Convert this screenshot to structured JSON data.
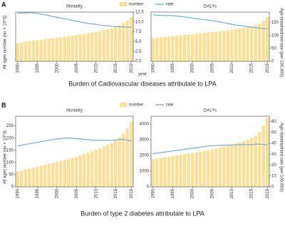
{
  "figures": [
    {
      "label": "A",
      "caption": "Burden of Cadiovascular diseases  attributale to LPA",
      "x_label": "year",
      "y_label": "All ages number (no × 10^3)",
      "y2_label": "Age-standardised rate (per 100,000)"
    },
    {
      "label": "B",
      "caption": "Burden of type 2 diabetes  attributale to LPA",
      "y_label": "All ages number (no × 10^3)",
      "y2_label": "Age-standardised rate (per 100,000)"
    }
  ],
  "chart_data": [
    {
      "type": "bar-line",
      "title": "Mortality",
      "x": [
        1990,
        1991,
        1992,
        1993,
        1994,
        1995,
        1996,
        1997,
        1998,
        1999,
        2000,
        2001,
        2002,
        2003,
        2004,
        2005,
        2006,
        2007,
        2008,
        2009,
        2010,
        2011,
        2012,
        2013,
        2014,
        2015,
        2016,
        2017,
        2018,
        2019
      ],
      "xlim": [
        1989.5,
        2019.5
      ],
      "xticks": [
        1990,
        1995,
        2000,
        2005,
        2010,
        2015,
        2019
      ],
      "ylim": [
        0,
        1000
      ],
      "y2lim": [
        0,
        12.5
      ],
      "y2ticks": [
        {
          "value": 0,
          "label": "0.0"
        },
        {
          "value": 2.5,
          "label": "2.5"
        },
        {
          "value": 5,
          "label": "5.0"
        },
        {
          "value": 7.5,
          "label": "7.5"
        },
        {
          "value": 10,
          "label": "10.0"
        },
        {
          "value": 12.5,
          "label": "12.5"
        }
      ],
      "series": [
        {
          "name": "number",
          "color": "#fbe09a",
          "values": [
            370,
            385,
            398,
            410,
            420,
            430,
            440,
            450,
            460,
            470,
            480,
            490,
            500,
            510,
            520,
            532,
            545,
            558,
            572,
            586,
            600,
            618,
            636,
            656,
            676,
            700,
            730,
            770,
            830,
            900
          ]
        },
        {
          "name": "rate",
          "color": "#7eb1d3",
          "axis": "y2",
          "values": [
            12.2,
            12.3,
            12.3,
            12.4,
            12.3,
            12.2,
            12.0,
            11.8,
            11.6,
            11.4,
            11.2,
            11.0,
            10.8,
            10.6,
            10.4,
            10.2,
            10.0,
            9.8,
            9.6,
            9.5,
            9.4,
            9.2,
            9.1,
            9.0,
            8.9,
            8.8,
            8.8,
            8.7,
            8.7,
            8.6
          ]
        }
      ]
    },
    {
      "type": "bar-line",
      "title": "DALYs",
      "x": [
        1990,
        1991,
        1992,
        1993,
        1994,
        1995,
        1996,
        1997,
        1998,
        1999,
        2000,
        2001,
        2002,
        2003,
        2004,
        2005,
        2006,
        2007,
        2008,
        2009,
        2010,
        2011,
        2012,
        2013,
        2014,
        2015,
        2016,
        2017,
        2018,
        2019
      ],
      "xlim": [
        1989.5,
        2019.5
      ],
      "xticks": [
        1990,
        1995,
        2000,
        2005,
        2010,
        2015,
        2019
      ],
      "ylim": [
        0,
        1000
      ],
      "y2lim": [
        0,
        190
      ],
      "y2ticks": [
        0,
        50,
        100,
        150
      ],
      "series": [
        {
          "name": "number",
          "color": "#fbe09a",
          "values": [
            470,
            480,
            488,
            496,
            504,
            512,
            520,
            528,
            536,
            544,
            552,
            560,
            568,
            576,
            585,
            594,
            603,
            612,
            622,
            632,
            642,
            654,
            666,
            680,
            694,
            710,
            730,
            760,
            820,
            900
          ]
        },
        {
          "name": "rate",
          "color": "#7eb1d3",
          "axis": "y2",
          "values": [
            180,
            178,
            178,
            177,
            177,
            176,
            175,
            173,
            171,
            169,
            167,
            165,
            163,
            161,
            159,
            157,
            155,
            152,
            149,
            146,
            143,
            140,
            138,
            136,
            134,
            132,
            130,
            128,
            127,
            126
          ]
        }
      ]
    },
    {
      "type": "bar-line",
      "title": "Mortality",
      "x": [
        1990,
        1991,
        1992,
        1993,
        1994,
        1995,
        1996,
        1997,
        1998,
        1999,
        2000,
        2001,
        2002,
        2003,
        2004,
        2005,
        2006,
        2007,
        2008,
        2009,
        2010,
        2011,
        2012,
        2013,
        2014,
        2015,
        2016,
        2017,
        2018,
        2019
      ],
      "xlim": [
        1989.5,
        2019.5
      ],
      "xticks": [
        1990,
        1995,
        2000,
        2005,
        2010,
        2015,
        2019
      ],
      "ylim": [
        0,
        290
      ],
      "yticks": [
        0,
        50,
        100,
        150,
        200,
        250
      ],
      "y2lim": [
        0,
        10
      ],
      "series": [
        {
          "name": "number",
          "color": "#fbe09a",
          "values": [
            62,
            66,
            70,
            74,
            78,
            82,
            86,
            90,
            94,
            98,
            102,
            106,
            110,
            114,
            119,
            124,
            129,
            134,
            140,
            146,
            152,
            158,
            165,
            172,
            180,
            190,
            202,
            218,
            240,
            268
          ]
        },
        {
          "name": "rate",
          "color": "#7eb1d3",
          "axis": "y2",
          "values": [
            5.8,
            5.9,
            6.0,
            6.1,
            6.2,
            6.3,
            6.4,
            6.5,
            6.6,
            6.7,
            6.8,
            6.8,
            6.9,
            6.9,
            6.9,
            6.8,
            6.8,
            6.7,
            6.7,
            6.6,
            6.6,
            6.6,
            6.6,
            6.6,
            6.6,
            6.6,
            6.7,
            6.7,
            6.6,
            6.5
          ]
        }
      ]
    },
    {
      "type": "bar-line",
      "title": "DALYs",
      "x": [
        1990,
        1991,
        1992,
        1993,
        1994,
        1995,
        1996,
        1997,
        1998,
        1999,
        2000,
        2001,
        2002,
        2003,
        2004,
        2005,
        2006,
        2007,
        2008,
        2009,
        2010,
        2011,
        2012,
        2013,
        2014,
        2015,
        2016,
        2017,
        2018,
        2019
      ],
      "xlim": [
        1989.5,
        2019.5
      ],
      "xticks": [
        1990,
        1995,
        2000,
        2005,
        2010,
        2015,
        2019
      ],
      "ylim": [
        0,
        4500
      ],
      "yticks": [
        0,
        1000,
        2000,
        3000,
        4000
      ],
      "y2lim": [
        0,
        65
      ],
      "y2ticks": [
        0,
        10,
        20,
        30,
        40,
        50,
        60
      ],
      "series": [
        {
          "name": "number",
          "color": "#fbe09a",
          "values": [
            1750,
            1800,
            1840,
            1880,
            1920,
            1960,
            2000,
            2040,
            2080,
            2120,
            2160,
            2200,
            2240,
            2290,
            2340,
            2390,
            2440,
            2490,
            2550,
            2610,
            2680,
            2750,
            2830,
            2920,
            3010,
            3120,
            3260,
            3480,
            3900,
            4400
          ]
        },
        {
          "name": "rate",
          "color": "#7eb1d3",
          "axis": "y2",
          "values": [
            30.5,
            31,
            31.5,
            32,
            32.5,
            33,
            33.5,
            34,
            34.5,
            35,
            35.5,
            36,
            36.5,
            37,
            37.5,
            37.8,
            38,
            38.2,
            38.3,
            38.4,
            38.5,
            38.6,
            38.7,
            38.8,
            38.9,
            39,
            39.2,
            39.3,
            39,
            38.5
          ]
        }
      ]
    }
  ]
}
